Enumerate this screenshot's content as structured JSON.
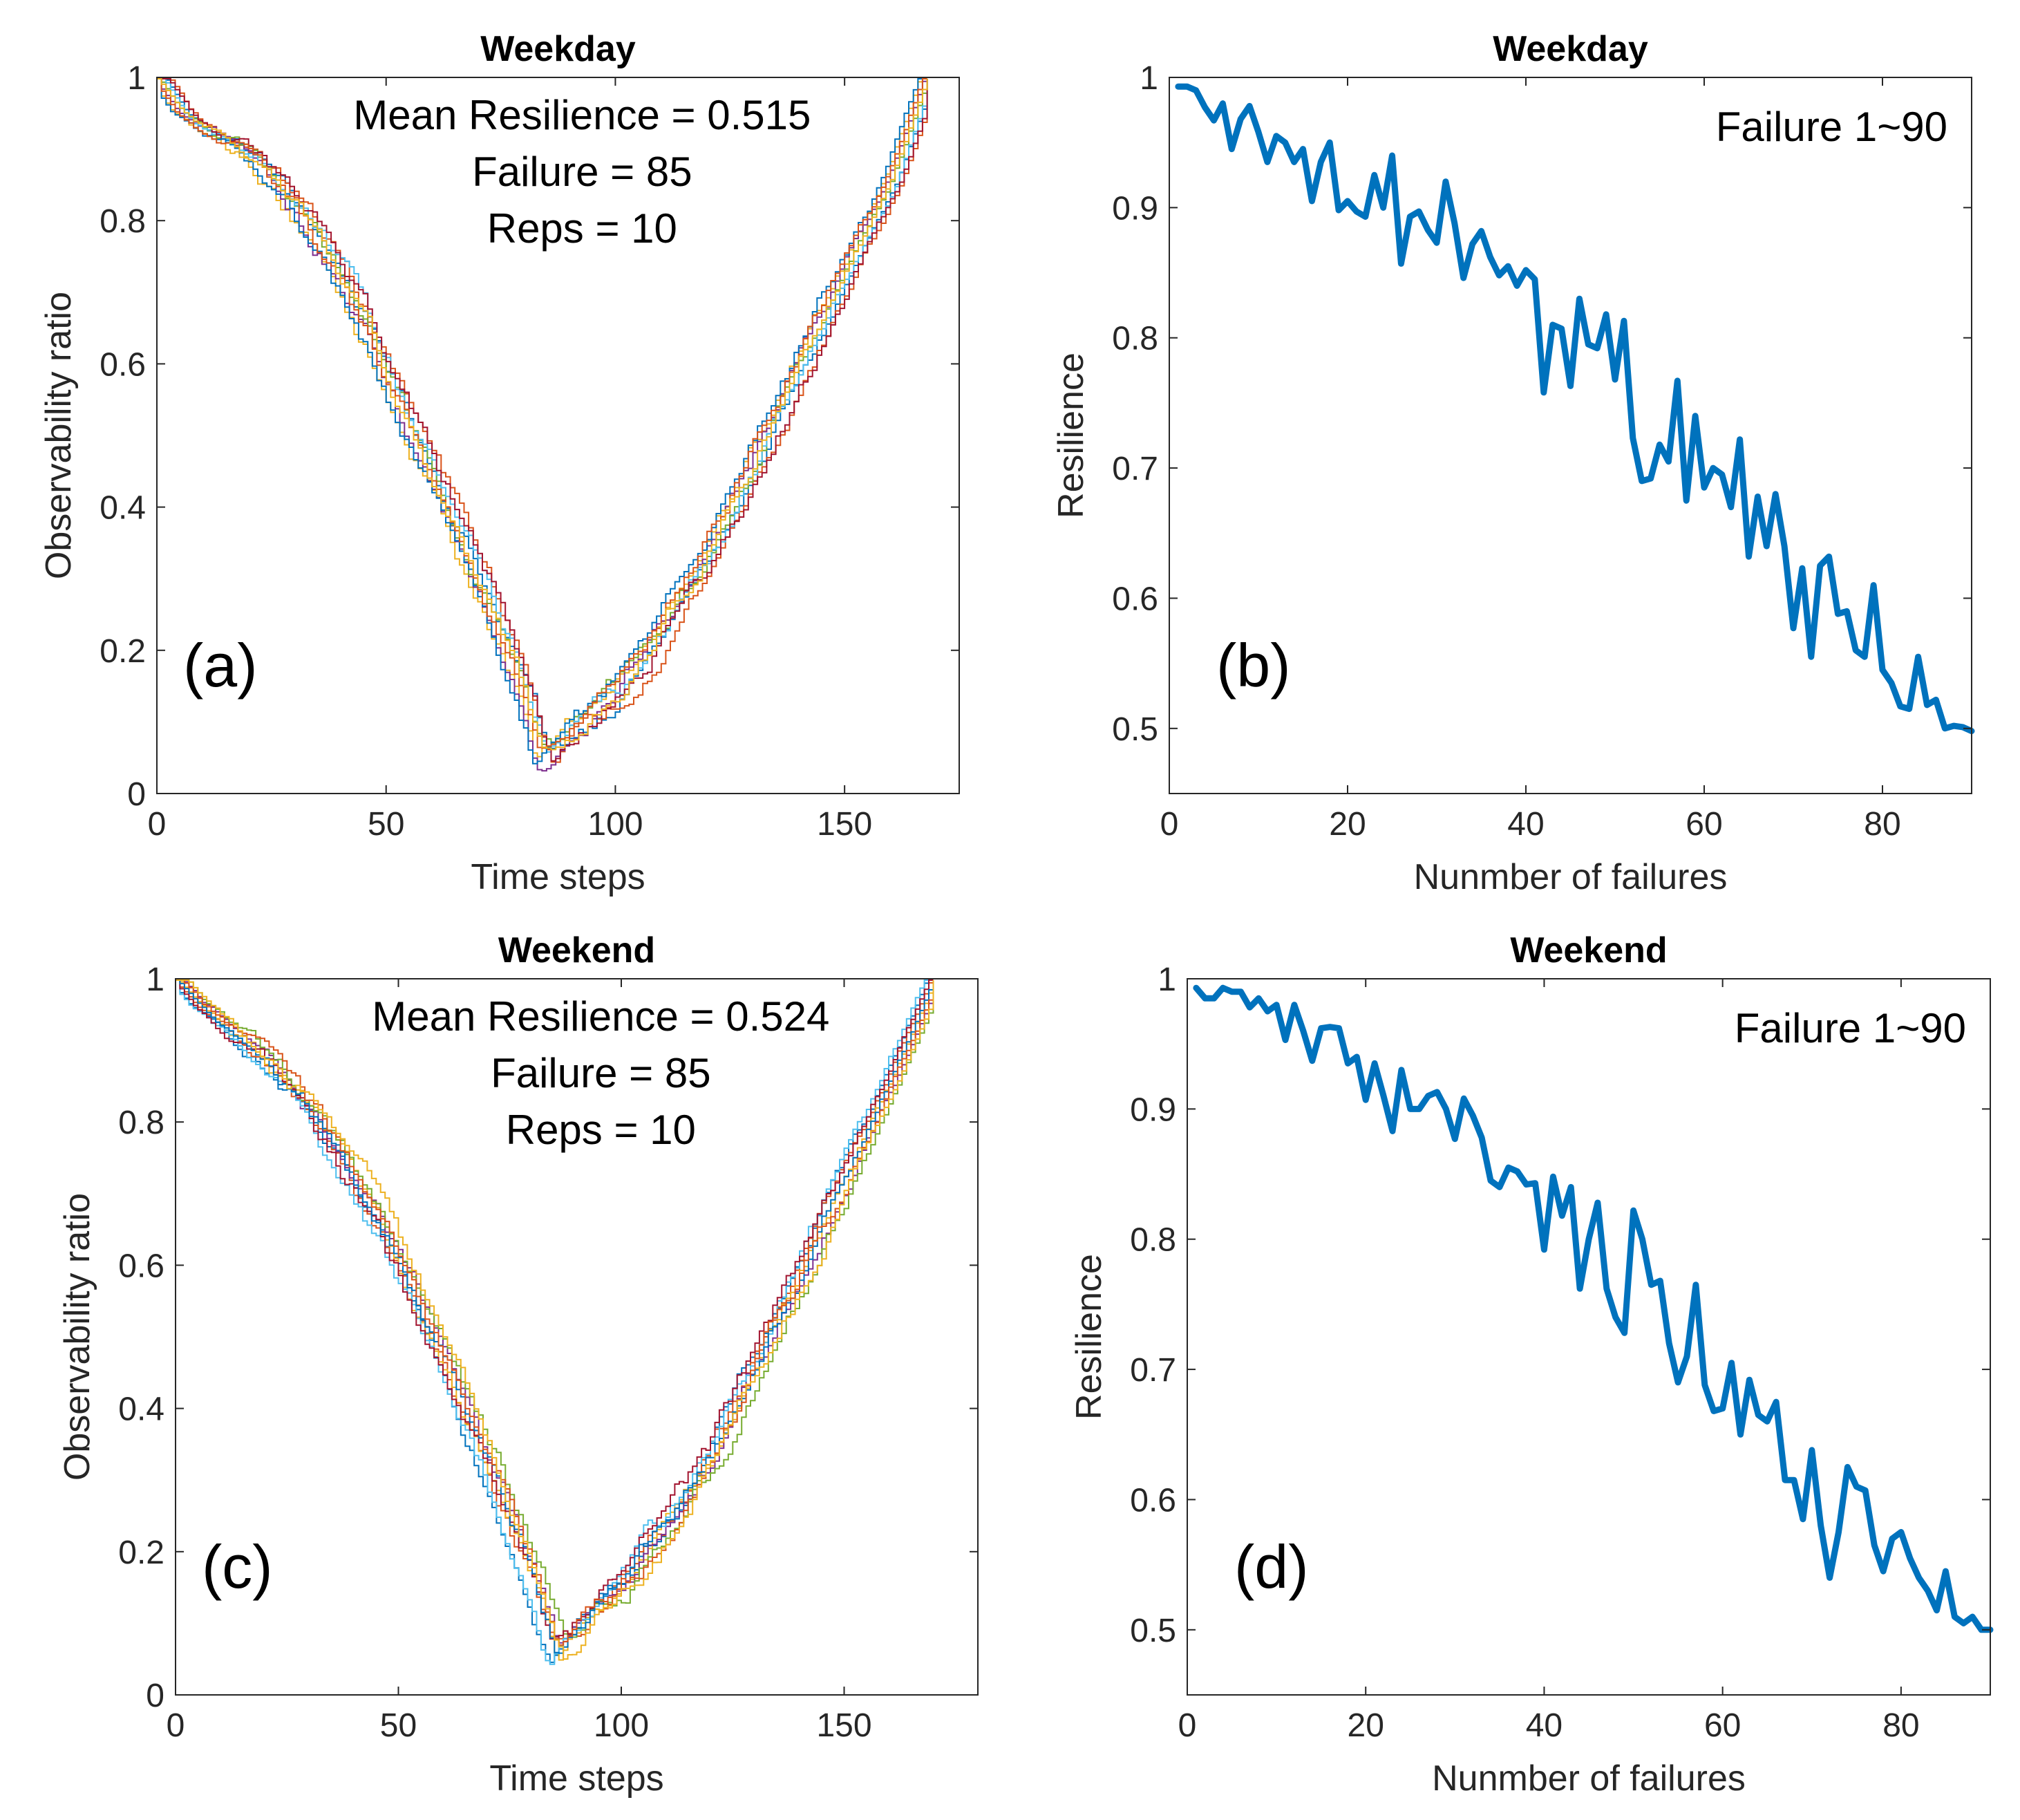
{
  "colors": {
    "series_palette": [
      "#0072BD",
      "#D95319",
      "#EDB120",
      "#7E2F8E",
      "#77AC30",
      "#4DBEEE",
      "#A2142F",
      "#0072BD",
      "#D95319",
      "#EDB120"
    ],
    "resilience_line": "#0072BD"
  },
  "chart_data": [
    {
      "panel": "a",
      "type": "line",
      "title": "Weekday",
      "panel_label": "(a)",
      "xlabel": "Time steps",
      "ylabel": "Observability ratio",
      "xlim": [
        0,
        175
      ],
      "ylim": [
        0,
        1
      ],
      "xticks": [
        0,
        50,
        100,
        150
      ],
      "yticks": [
        0,
        0.2,
        0.4,
        0.6,
        0.8,
        1
      ],
      "xtick_labels": [
        "0",
        "50",
        "100",
        "150"
      ],
      "ytick_labels": [
        "0",
        "0.2",
        "0.4",
        "0.6",
        "0.8",
        "1"
      ],
      "annotations": [
        "Mean Resilience = 0.515",
        "Failure = 85",
        "Reps = 10"
      ],
      "reps": 10,
      "x_key": [
        0,
        5,
        10,
        20,
        30,
        40,
        50,
        60,
        70,
        80,
        84,
        90,
        100,
        110,
        120,
        130,
        140,
        150,
        160,
        168
      ],
      "series_note": "10 replicate runs of observability ratio vs time step",
      "mean_curve": [
        1.0,
        0.95,
        0.92,
        0.88,
        0.8,
        0.7,
        0.56,
        0.42,
        0.28,
        0.12,
        0.03,
        0.07,
        0.13,
        0.22,
        0.32,
        0.45,
        0.58,
        0.72,
        0.85,
        1.0
      ]
    },
    {
      "panel": "b",
      "type": "line",
      "title": "Weekday",
      "panel_label": "(b)",
      "xlabel": "Nunmber of failures",
      "ylabel": "Resilience",
      "xlim": [
        0,
        90
      ],
      "ylim": [
        0.45,
        1
      ],
      "xticks": [
        0,
        20,
        40,
        60,
        80
      ],
      "yticks": [
        0.5,
        0.6,
        0.7,
        0.8,
        0.9,
        1
      ],
      "xtick_labels": [
        "0",
        "20",
        "40",
        "60",
        "80"
      ],
      "ytick_labels": [
        "0.5",
        "0.6",
        "0.7",
        "0.8",
        "0.9",
        "1"
      ],
      "annotation": "Failure 1~90",
      "x": [
        1,
        2,
        3,
        4,
        5,
        6,
        7,
        8,
        9,
        10,
        11,
        12,
        13,
        14,
        15,
        16,
        17,
        18,
        19,
        20,
        21,
        22,
        23,
        24,
        25,
        26,
        27,
        28,
        29,
        30,
        31,
        32,
        33,
        34,
        35,
        36,
        37,
        38,
        39,
        40,
        41,
        42,
        43,
        44,
        45,
        46,
        47,
        48,
        49,
        50,
        51,
        52,
        53,
        54,
        55,
        56,
        57,
        58,
        59,
        60,
        61,
        62,
        63,
        64,
        65,
        66,
        67,
        68,
        69,
        70,
        71,
        72,
        73,
        74,
        75,
        76,
        77,
        78,
        79,
        80,
        81,
        82,
        83,
        84,
        85,
        86,
        87,
        88,
        89,
        90
      ],
      "y": [
        0.993,
        0.993,
        0.99,
        0.977,
        0.967,
        0.98,
        0.945,
        0.968,
        0.978,
        0.958,
        0.935,
        0.955,
        0.95,
        0.935,
        0.945,
        0.905,
        0.935,
        0.95,
        0.898,
        0.905,
        0.897,
        0.893,
        0.925,
        0.9,
        0.94,
        0.857,
        0.893,
        0.897,
        0.883,
        0.873,
        0.92,
        0.888,
        0.846,
        0.872,
        0.882,
        0.862,
        0.848,
        0.855,
        0.84,
        0.852,
        0.845,
        0.758,
        0.81,
        0.807,
        0.763,
        0.83,
        0.795,
        0.792,
        0.818,
        0.768,
        0.813,
        0.723,
        0.69,
        0.692,
        0.718,
        0.705,
        0.767,
        0.675,
        0.74,
        0.685,
        0.7,
        0.695,
        0.67,
        0.722,
        0.632,
        0.678,
        0.64,
        0.68,
        0.64,
        0.577,
        0.623,
        0.555,
        0.625,
        0.632,
        0.588,
        0.59,
        0.56,
        0.555,
        0.61,
        0.545,
        0.535,
        0.517,
        0.515,
        0.555,
        0.518,
        0.522,
        0.5,
        0.502,
        0.501,
        0.498
      ]
    },
    {
      "panel": "c",
      "type": "line",
      "title": "Weekend",
      "panel_label": "(c)",
      "xlabel": "Time steps",
      "ylabel": "Observability ratio",
      "xlim": [
        0,
        180
      ],
      "ylim": [
        0,
        1
      ],
      "xticks": [
        0,
        50,
        100,
        150
      ],
      "yticks": [
        0,
        0.2,
        0.4,
        0.6,
        0.8,
        1
      ],
      "xtick_labels": [
        "0",
        "50",
        "100",
        "150"
      ],
      "ytick_labels": [
        "0",
        "0.2",
        "0.4",
        "0.6",
        "0.8",
        "1"
      ],
      "annotations": [
        "Mean Resilience = 0.524",
        "Failure = 85",
        "Reps = 10"
      ],
      "reps": 10,
      "x_key": [
        0,
        5,
        10,
        20,
        30,
        40,
        50,
        60,
        70,
        80,
        85,
        90,
        100,
        110,
        120,
        130,
        140,
        150,
        160,
        170
      ],
      "series_note": "10 replicate runs of observability ratio vs time step",
      "mean_curve": [
        1.0,
        0.96,
        0.93,
        0.87,
        0.79,
        0.69,
        0.57,
        0.44,
        0.3,
        0.14,
        0.04,
        0.07,
        0.13,
        0.21,
        0.31,
        0.44,
        0.57,
        0.71,
        0.85,
        1.0
      ]
    },
    {
      "panel": "d",
      "type": "line",
      "title": "Weekend",
      "panel_label": "(d)",
      "xlabel": "Nunmber of failures",
      "ylabel": "Resilience",
      "xlim": [
        0,
        90
      ],
      "ylim": [
        0.45,
        1
      ],
      "xticks": [
        0,
        20,
        40,
        60,
        80
      ],
      "yticks": [
        0.5,
        0.6,
        0.7,
        0.8,
        0.9,
        1
      ],
      "xtick_labels": [
        "0",
        "20",
        "40",
        "60",
        "80"
      ],
      "ytick_labels": [
        "0.5",
        "0.6",
        "0.7",
        "0.8",
        "0.9",
        "1"
      ],
      "annotation": "Failure 1~90",
      "x": [
        1,
        2,
        3,
        4,
        5,
        6,
        7,
        8,
        9,
        10,
        11,
        12,
        13,
        14,
        15,
        16,
        17,
        18,
        19,
        20,
        21,
        22,
        23,
        24,
        25,
        26,
        27,
        28,
        29,
        30,
        31,
        32,
        33,
        34,
        35,
        36,
        37,
        38,
        39,
        40,
        41,
        42,
        43,
        44,
        45,
        46,
        47,
        48,
        49,
        50,
        51,
        52,
        53,
        54,
        55,
        56,
        57,
        58,
        59,
        60,
        61,
        62,
        63,
        64,
        65,
        66,
        67,
        68,
        69,
        70,
        71,
        72,
        73,
        74,
        75,
        76,
        77,
        78,
        79,
        80,
        81,
        82,
        83,
        84,
        85,
        86,
        87,
        88,
        89,
        90
      ],
      "y": [
        0.993,
        0.985,
        0.985,
        0.993,
        0.99,
        0.99,
        0.978,
        0.985,
        0.975,
        0.98,
        0.953,
        0.98,
        0.96,
        0.937,
        0.962,
        0.963,
        0.962,
        0.935,
        0.94,
        0.907,
        0.935,
        0.91,
        0.883,
        0.93,
        0.9,
        0.9,
        0.91,
        0.913,
        0.9,
        0.877,
        0.908,
        0.895,
        0.878,
        0.845,
        0.84,
        0.855,
        0.852,
        0.842,
        0.843,
        0.792,
        0.848,
        0.818,
        0.84,
        0.762,
        0.8,
        0.828,
        0.762,
        0.74,
        0.728,
        0.822,
        0.8,
        0.765,
        0.768,
        0.72,
        0.69,
        0.71,
        0.765,
        0.688,
        0.668,
        0.67,
        0.705,
        0.65,
        0.692,
        0.665,
        0.66,
        0.675,
        0.615,
        0.615,
        0.585,
        0.638,
        0.58,
        0.54,
        0.575,
        0.625,
        0.61,
        0.607,
        0.565,
        0.545,
        0.57,
        0.575,
        0.555,
        0.54,
        0.53,
        0.515,
        0.545,
        0.51,
        0.505,
        0.51,
        0.5,
        0.5
      ]
    }
  ]
}
